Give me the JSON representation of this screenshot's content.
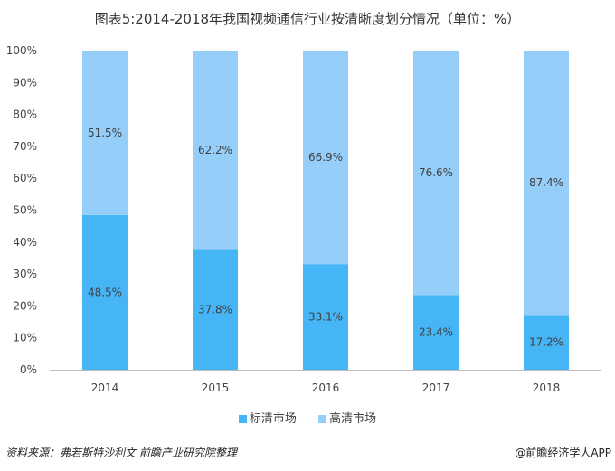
{
  "chart_data": {
    "type": "bar",
    "stacked": true,
    "title": "图表5:2014-2018年我国视频通信行业按清晰度划分情况（单位：%）",
    "categories": [
      "2014",
      "2015",
      "2016",
      "2017",
      "2018"
    ],
    "series": [
      {
        "name": "标清市场",
        "values": [
          48.5,
          37.8,
          33.1,
          23.4,
          17.2
        ],
        "labels": [
          "48.5%",
          "37.8%",
          "33.1%",
          "23.4%",
          "17.2%"
        ],
        "color": "#45b5f6"
      },
      {
        "name": "高清市场",
        "values": [
          51.5,
          62.2,
          66.9,
          76.6,
          87.4
        ],
        "labels": [
          "51.5%",
          "62.2%",
          "66.9%",
          "76.6%",
          "87.4%"
        ],
        "color": "#94cef9"
      }
    ],
    "yticks": [
      "0%",
      "10%",
      "20%",
      "30%",
      "40%",
      "50%",
      "60%",
      "70%",
      "80%",
      "90%",
      "100%"
    ],
    "ylim": [
      0,
      100
    ],
    "legend": "bottom"
  },
  "footer": {
    "source": "资料来源：弗若斯特沙利文 前瞻产业研究院整理",
    "credit": "@前瞻经济学人APP"
  }
}
